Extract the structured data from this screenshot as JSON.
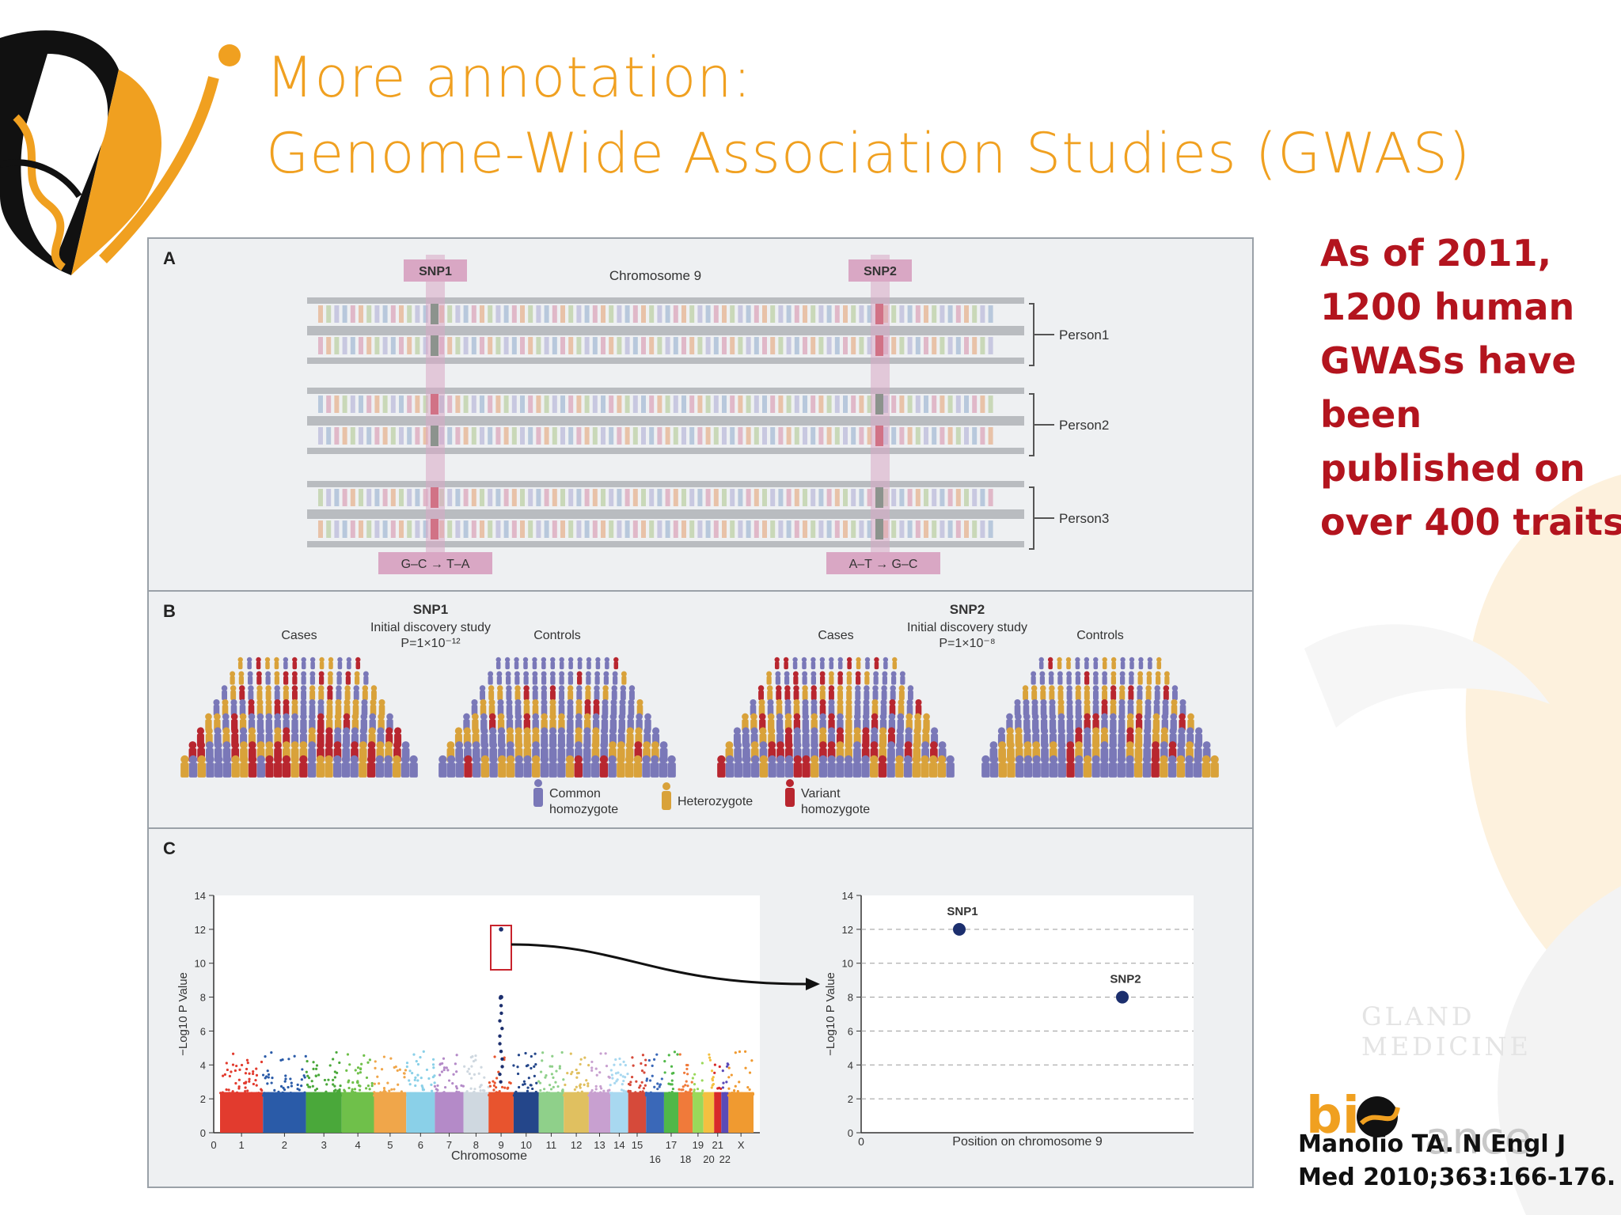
{
  "slide": {
    "title_line1": "More annotation:",
    "title_line2": "Genome-Wide Association Studies (GWAS)",
    "note_lines": [
      "As of 2011,",
      "1200 human",
      "GWASs have",
      "been",
      "published on",
      "over 400 traits"
    ],
    "citation_lines": [
      "Manolio TA. N Engl J",
      "Med 2010;363:166-176."
    ],
    "colors": {
      "title": "#f0a020",
      "note": "#b3141e",
      "accent_orange": "#f0a020"
    }
  },
  "figure": {
    "panel_a": {
      "letter": "A",
      "chromosome_label": "Chromosome 9",
      "snp1_label": "SNP1",
      "snp2_label": "SNP2",
      "persons": [
        "Person1",
        "Person2",
        "Person3"
      ],
      "snp1_change": "G–C → T–A",
      "snp2_change": "A–T → G–C"
    },
    "panel_b": {
      "letter": "B",
      "snp1_title": "SNP1",
      "snp1_study": "Initial discovery study",
      "snp1_p": "P=1×10⁻¹²",
      "snp2_title": "SNP2",
      "snp2_study": "Initial discovery study",
      "snp2_p": "P=1×10⁻⁸",
      "cases_label": "Cases",
      "controls_label": "Controls",
      "legend_common_1": "Common",
      "legend_common_2": "homozygote",
      "legend_het": "Heterozygote",
      "legend_variant_1": "Variant",
      "legend_variant_2": "homozygote",
      "colors": {
        "common": "#7a78b8",
        "het": "#d9a23a",
        "variant": "#b8262f"
      }
    },
    "panel_c": {
      "letter": "C",
      "left_xlabel": "Chromosome",
      "left_ylabel": "−Log10 P Value",
      "right_xlabel": "Position on chromosome 9",
      "right_ylabel": "−Log10 P Value",
      "y_ticks": [
        "0",
        "2",
        "4",
        "6",
        "8",
        "10",
        "12",
        "14"
      ],
      "chrom_top_ticks": [
        "0",
        "1",
        "2",
        "3",
        "4",
        "5",
        "6",
        "7",
        "8",
        "9",
        "10",
        "11",
        "12",
        "13",
        "14",
        "15",
        "17",
        "19",
        "21",
        "X"
      ],
      "chrom_bottom_ticks": [
        "16",
        "18",
        "20",
        "22"
      ],
      "snp1_point_label": "SNP1",
      "snp2_point_label": "SNP2",
      "right_x_origin": "0"
    }
  },
  "chart_data": [
    {
      "type": "scatter",
      "title": "",
      "xlabel": "Chromosome",
      "ylabel": "−Log10 P Value",
      "ylim": [
        0,
        14
      ],
      "categories": [
        "1",
        "2",
        "3",
        "4",
        "5",
        "6",
        "7",
        "8",
        "9",
        "10",
        "11",
        "12",
        "13",
        "14",
        "15",
        "16",
        "17",
        "18",
        "19",
        "20",
        "21",
        "22",
        "X"
      ],
      "highlight": {
        "chromosome": "9",
        "peak_values": [
          12,
          8
        ]
      },
      "grid": false
    },
    {
      "type": "scatter",
      "title": "",
      "xlabel": "Position on chromosome 9",
      "ylabel": "−Log10 P Value",
      "ylim": [
        0,
        14
      ],
      "series": [
        {
          "name": "SNP1",
          "y": 12
        },
        {
          "name": "SNP2",
          "y": 8
        }
      ],
      "grid": true
    }
  ]
}
